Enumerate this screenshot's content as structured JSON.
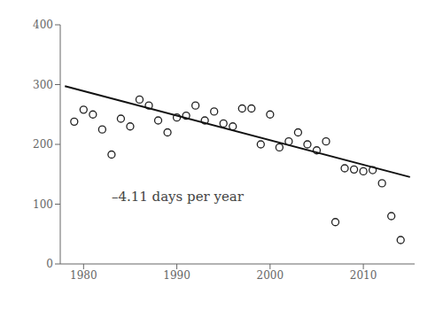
{
  "chart_data": {
    "type": "scatter",
    "series": [
      {
        "type": "scatter",
        "marker": "hollow_circle",
        "color": "#222222",
        "x": [
          1979,
          1980,
          1981,
          1982,
          1983,
          1984,
          1985,
          1986,
          1987,
          1988,
          1989,
          1990,
          1991,
          1992,
          1993,
          1994,
          1995,
          1996,
          1997,
          1998,
          1999,
          2000,
          2001,
          2002,
          2003,
          2004,
          2005,
          2006,
          2007,
          2008,
          2009,
          2010,
          2011,
          2012,
          2013,
          2014
        ],
        "values": [
          238,
          258,
          250,
          225,
          183,
          243,
          230,
          275,
          265,
          240,
          220,
          245,
          248,
          265,
          240,
          255,
          235,
          230,
          260,
          260,
          200,
          250,
          195,
          205,
          220,
          200,
          190,
          205,
          70,
          160,
          158,
          155,
          157,
          135,
          80,
          40
        ]
      },
      {
        "type": "line",
        "color": "#111111",
        "x": [
          1978,
          2015
        ],
        "values": [
          297.42,
          145.35
        ]
      }
    ],
    "annotations": [
      {
        "text": "–4.11 days per year",
        "x": 1983,
        "y": 105,
        "color": "#444444"
      }
    ],
    "xlim": [
      1977.5,
      2015.5
    ],
    "ylim": [
      0,
      400
    ],
    "xticks": [
      1980,
      1990,
      2000,
      2010
    ],
    "yticks": [
      0,
      100,
      200,
      300,
      400
    ],
    "grid": false
  }
}
